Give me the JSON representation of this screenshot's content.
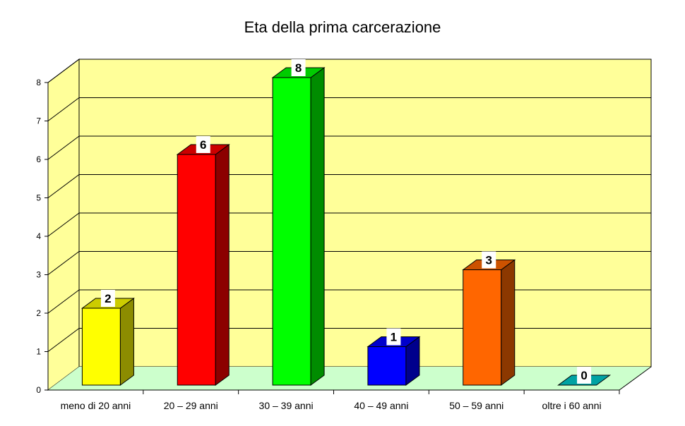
{
  "chart_data": {
    "type": "bar",
    "title": "Eta della prima carcerazione",
    "xlabel": "",
    "ylabel": "",
    "categories": [
      "meno di 20 anni",
      "20 – 29 anni",
      "30 – 39 anni",
      "40 – 49 anni",
      "50 – 59 anni",
      "oltre i 60 anni"
    ],
    "values": [
      2,
      6,
      8,
      1,
      3,
      0
    ],
    "data_labels": [
      "2",
      "6",
      "8",
      "1",
      "3",
      "0"
    ],
    "colors": [
      "#ffff00",
      "#ff0000",
      "#00ff00",
      "#0000ff",
      "#ff6600",
      "#00cccc"
    ],
    "ylim": [
      0,
      8
    ],
    "yticks": [
      "0",
      "1",
      "2",
      "3",
      "4",
      "5",
      "6",
      "7",
      "8"
    ],
    "grid": true,
    "legend": "none",
    "style": {
      "wall_color": "#ffff99",
      "floor_color": "#ccffcc",
      "grid_color": "#000000"
    }
  }
}
